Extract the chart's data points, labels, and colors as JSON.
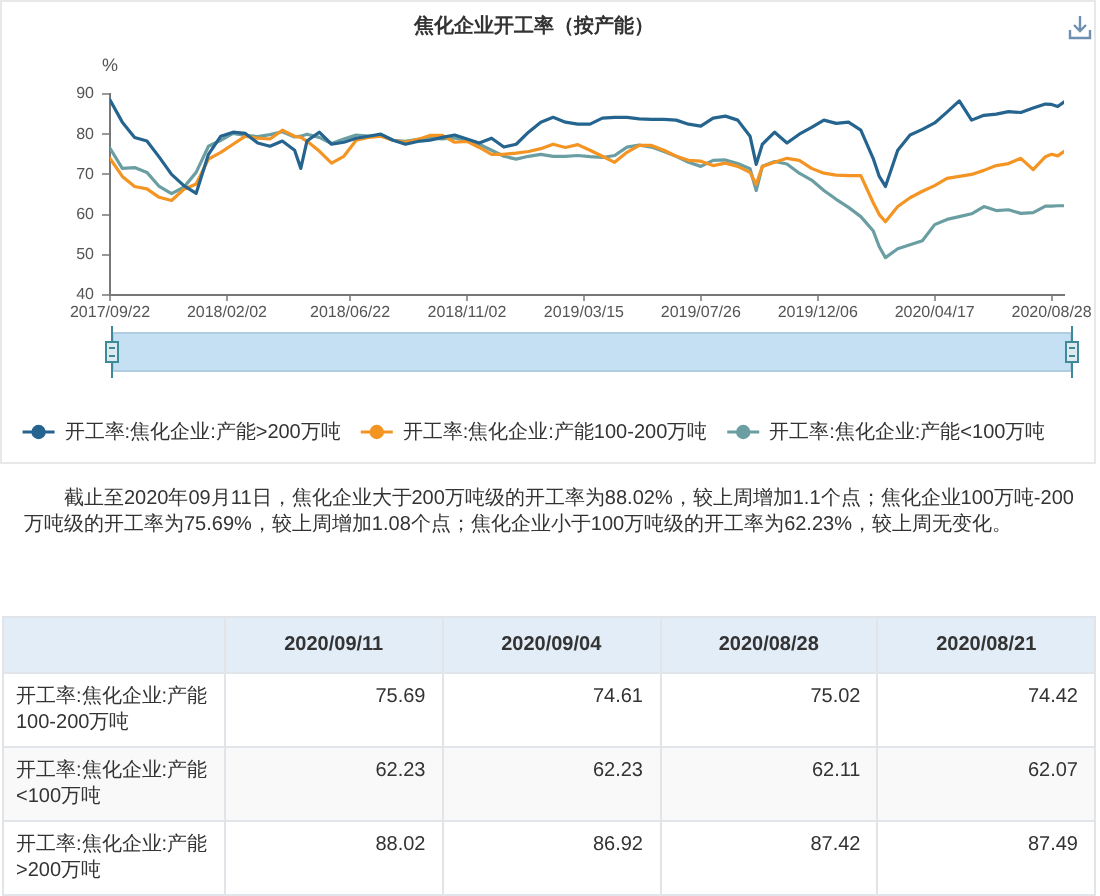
{
  "chart_data": [
    {
      "type": "line",
      "title": "焦化企业开工率（按产能）",
      "ylabel": "%",
      "x": [
        "2017-09-22",
        "2017-10-06",
        "2017-10-20",
        "2017-11-03",
        "2017-11-17",
        "2017-12-01",
        "2017-12-15",
        "2017-12-29",
        "2018-01-12",
        "2018-01-26",
        "2018-02-09",
        "2018-02-23",
        "2018-03-09",
        "2018-03-23",
        "2018-04-06",
        "2018-04-20",
        "2018-04-27",
        "2018-05-04",
        "2018-05-18",
        "2018-06-01",
        "2018-06-15",
        "2018-06-29",
        "2018-07-13",
        "2018-07-27",
        "2018-08-10",
        "2018-08-24",
        "2018-09-07",
        "2018-09-21",
        "2018-10-05",
        "2018-10-19",
        "2018-11-02",
        "2018-11-16",
        "2018-11-30",
        "2018-12-14",
        "2018-12-28",
        "2019-01-11",
        "2019-01-25",
        "2019-02-08",
        "2019-02-22",
        "2019-03-08",
        "2019-03-22",
        "2019-04-05",
        "2019-04-19",
        "2019-05-03",
        "2019-05-17",
        "2019-05-31",
        "2019-06-14",
        "2019-06-28",
        "2019-07-12",
        "2019-07-26",
        "2019-08-09",
        "2019-08-23",
        "2019-09-06",
        "2019-09-20",
        "2019-09-27",
        "2019-10-04",
        "2019-10-18",
        "2019-11-01",
        "2019-11-15",
        "2019-11-29",
        "2019-12-13",
        "2019-12-27",
        "2020-01-10",
        "2020-01-24",
        "2020-02-07",
        "2020-02-14",
        "2020-02-21",
        "2020-03-06",
        "2020-03-20",
        "2020-04-03",
        "2020-04-17",
        "2020-05-01",
        "2020-05-15",
        "2020-05-29",
        "2020-06-12",
        "2020-06-26",
        "2020-07-10",
        "2020-07-24",
        "2020-08-07",
        "2020-08-21",
        "2020-08-28",
        "2020-09-04",
        "2020-09-11"
      ],
      "series": [
        {
          "name": "开工率:焦化企业:产能>200万吨",
          "color": "#24648e",
          "values": [
            88.5,
            83,
            79.2,
            78.3,
            74.3,
            70,
            67.2,
            65.3,
            75,
            79.5,
            80.5,
            80.2,
            77.8,
            77,
            78.3,
            76,
            71.5,
            78.3,
            80.5,
            77.5,
            78,
            79,
            79.5,
            80,
            78.5,
            77.5,
            78.2,
            78.5,
            79.2,
            79.8,
            78.8,
            77.8,
            79,
            76.8,
            77.5,
            80.5,
            83,
            84.2,
            83,
            82.5,
            82.5,
            84,
            84.2,
            84.2,
            83.8,
            83.7,
            83.7,
            83.5,
            82.5,
            82,
            84,
            84.5,
            83.5,
            79.5,
            72.5,
            77.5,
            80.5,
            77.8,
            80,
            81.7,
            83.5,
            82.7,
            83,
            81,
            74,
            69.5,
            67,
            76,
            79.8,
            81.2,
            82.8,
            85.5,
            88.3,
            83.5,
            84.7,
            85,
            85.6,
            85.4,
            86.5,
            87.5,
            87.4,
            86.9,
            88
          ]
        },
        {
          "name": "开工率:焦化企业:产能100-200万吨",
          "color": "#f39423",
          "values": [
            74,
            69.5,
            67,
            66.4,
            64.3,
            63.5,
            66.3,
            67.6,
            73.8,
            75.5,
            77.5,
            79.5,
            79,
            78.8,
            81,
            79.5,
            79.2,
            78.3,
            75.8,
            72.8,
            74.5,
            78.5,
            79.2,
            79.5,
            78.5,
            78,
            78.7,
            79.7,
            79.7,
            78,
            78.2,
            76.7,
            75,
            75,
            75.3,
            75.7,
            76.4,
            77.5,
            76.7,
            77.4,
            76,
            74.5,
            73,
            75.5,
            77.2,
            77.2,
            76,
            74.5,
            73.5,
            73.3,
            72.2,
            72.8,
            72,
            70.5,
            67.5,
            72,
            73,
            74,
            73.5,
            71.5,
            70.3,
            69.8,
            69.7,
            69.7,
            63,
            60,
            58.2,
            62,
            64.2,
            65.8,
            67.2,
            69,
            69.5,
            70,
            71,
            72.2,
            72.7,
            74,
            71.2,
            74.4,
            75,
            74.6,
            75.7
          ]
        },
        {
          "name": "开工率:焦化企业:产能<100万吨",
          "color": "#6a9ea2",
          "values": [
            76.5,
            71.5,
            71.7,
            70.5,
            67,
            65.2,
            66.8,
            70.5,
            77,
            78.5,
            80.2,
            79.7,
            79.4,
            79.9,
            80.6,
            79.3,
            79.5,
            80,
            79.2,
            77.7,
            78.8,
            79.8,
            79.5,
            79.8,
            78.5,
            78.2,
            78.7,
            79,
            78.8,
            79.1,
            78.4,
            77.5,
            76,
            74.5,
            73.8,
            74.5,
            75,
            74.5,
            74.5,
            74.7,
            74.4,
            74.2,
            74.7,
            76.8,
            77.3,
            76.8,
            75.7,
            74.5,
            73,
            72,
            73.5,
            73.6,
            72.7,
            71.4,
            66,
            72,
            73.2,
            72.6,
            70.3,
            68.6,
            66,
            63.8,
            61.8,
            59.5,
            56,
            52,
            49.3,
            51.5,
            52.5,
            53.5,
            57.5,
            58.8,
            59.5,
            60.2,
            62,
            61,
            61.2,
            60.3,
            60.5,
            62.1,
            62.1,
            62.2,
            62.2
          ]
        }
      ],
      "xlim": [
        "2017-09-22",
        "2020-09-11"
      ],
      "xticks": [
        {
          "value": "2017-09-22",
          "label": "2017/09/22"
        },
        {
          "value": "2018-02-02",
          "label": "2018/02/02"
        },
        {
          "value": "2018-06-22",
          "label": "2018/06/22"
        },
        {
          "value": "2018-11-02",
          "label": "2018/11/02"
        },
        {
          "value": "2019-03-15",
          "label": "2019/03/15"
        },
        {
          "value": "2019-07-26",
          "label": "2019/07/26"
        },
        {
          "value": "2019-12-06",
          "label": "2019/12/06"
        },
        {
          "value": "2020-04-17",
          "label": "2020/04/17"
        },
        {
          "value": "2020-08-28",
          "label": "2020/08/28"
        }
      ],
      "ylim": [
        40,
        90
      ],
      "yticks": [
        40,
        50,
        60,
        70,
        80,
        90
      ],
      "legend": "bottom",
      "marker": "none",
      "line_style": "solid",
      "annotations": [
        "截止至2020年09月11日，焦化企业大于200万吨级的开工率为88.02%，较上周增加1.1个点；焦化企业100万吨-200万吨级的开工率为75.69%，较上周增加1.08个点；焦化企业小于100万吨级的开工率为62.23%，较上周无变化。"
      ]
    },
    {
      "type": "other",
      "categories": [
        "2020/09/11",
        "2020/09/04",
        "2020/08/28",
        "2020/08/21"
      ],
      "series": [
        {
          "name": "开工率:焦化企业:产能100-200万吨",
          "values": [
            75.69,
            74.61,
            75.02,
            74.42
          ]
        },
        {
          "name": "开工率:焦化企业:产能<100万吨",
          "values": [
            62.23,
            62.23,
            62.11,
            62.07
          ]
        },
        {
          "name": "开工率:焦化企业:产能>200万吨",
          "values": [
            88.02,
            86.92,
            87.42,
            87.49
          ]
        }
      ],
      "data_labels": true
    }
  ]
}
